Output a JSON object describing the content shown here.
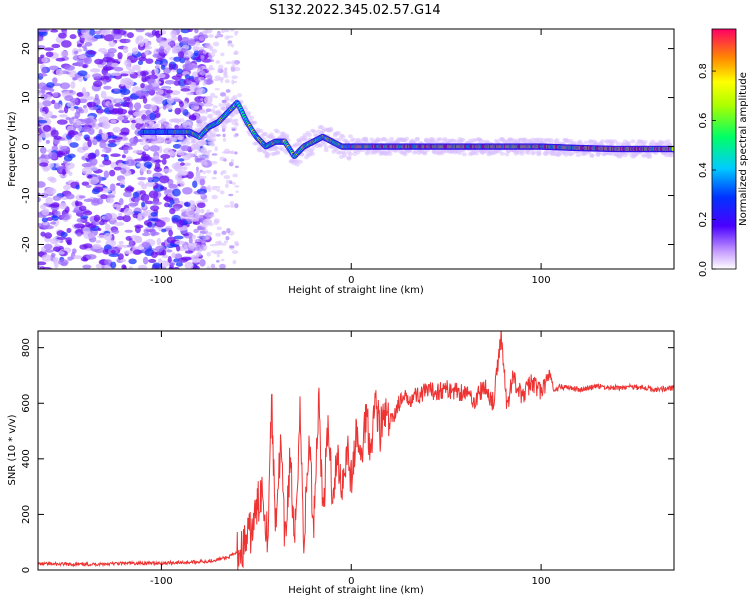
{
  "title": "S132.2022.345.02.57.G14",
  "chart_data": [
    {
      "type": "heatmap",
      "xlabel": "Height of straight line (km)",
      "ylabel": "Frequency (Hz)",
      "xlim": [
        -165,
        170
      ],
      "ylim": [
        -25,
        24
      ],
      "x_ticks": [
        -100,
        0,
        100
      ],
      "y_ticks": [
        -20,
        -10,
        0,
        10,
        20
      ],
      "colorbar": {
        "label": "Normalized spectral amplitude",
        "range": [
          0,
          0.97
        ],
        "ticks": [
          0.0,
          0.2,
          0.4,
          0.6,
          0.8
        ]
      },
      "ridge": {
        "x": [
          -110,
          -100,
          -95,
          -90,
          -85,
          -80,
          -75,
          -70,
          -65,
          -60,
          -55,
          -50,
          -45,
          -40,
          -35,
          -30,
          -25,
          -20,
          -15,
          -10,
          -5,
          0,
          20,
          40,
          60,
          80,
          100,
          120,
          140,
          160
        ],
        "y": [
          3,
          3,
          3,
          3,
          3,
          2,
          4,
          5,
          7,
          9,
          5,
          2,
          0,
          1,
          1,
          -2,
          0,
          1,
          2,
          1,
          0,
          0,
          0,
          0,
          0,
          0,
          0,
          -0.3,
          -0.5,
          -0.5
        ]
      }
    },
    {
      "type": "line",
      "xlabel": "Height of straight line (km)",
      "ylabel": "SNR (10 * v/v)",
      "xlim": [
        -165,
        170
      ],
      "ylim": [
        0,
        860
      ],
      "x_ticks": [
        -100,
        0,
        100
      ],
      "y_ticks": [
        0,
        200,
        400,
        600,
        800
      ],
      "series": [
        {
          "color": "#ee3333",
          "x": [
            -165,
            -140,
            -120,
            -100,
            -85,
            -75,
            -65,
            -58,
            -52,
            -47,
            -44,
            -42,
            -40,
            -37,
            -35,
            -32,
            -30,
            -27,
            -25,
            -22,
            -20,
            -17,
            -15,
            -12,
            -10,
            -7,
            -5,
            -2,
            0,
            3,
            5,
            8,
            10,
            13,
            15,
            18,
            20,
            25,
            30,
            40,
            50,
            60,
            65,
            70,
            75,
            79,
            82,
            85,
            90,
            95,
            100,
            105,
            107,
            110,
            120,
            130,
            140,
            150,
            160,
            170
          ],
          "y": [
            22,
            20,
            24,
            25,
            28,
            32,
            45,
            70,
            150,
            300,
            120,
            610,
            180,
            450,
            90,
            420,
            60,
            580,
            100,
            480,
            150,
            630,
            200,
            520,
            280,
            400,
            300,
            450,
            320,
            500,
            380,
            580,
            440,
            620,
            500,
            560,
            520,
            600,
            620,
            640,
            650,
            640,
            610,
            660,
            600,
            850,
            580,
            700,
            620,
            680,
            640,
            700,
            640,
            660,
            650,
            660,
            655,
            660,
            650,
            655
          ]
        }
      ]
    }
  ]
}
